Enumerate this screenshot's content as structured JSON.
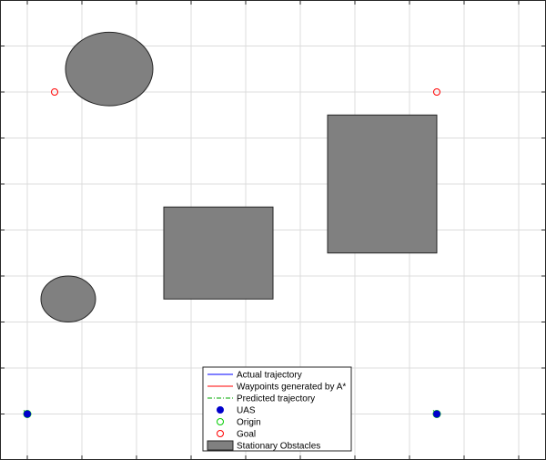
{
  "chart_data": {
    "type": "scatter",
    "title": "",
    "xlabel": "",
    "ylabel": "",
    "xlim": [
      -0.5,
      9.5
    ],
    "ylim": [
      -0.5,
      9.5
    ],
    "grid": true,
    "tick_labels_visible": false,
    "colors": {
      "grid": "#dcdcdc",
      "axes": "#262626",
      "obstacle_fill": "#808080",
      "obstacle_edge": "#262626",
      "actual": "#0000ff",
      "waypoints": "#ff0000",
      "predicted": "#00aa00",
      "uas": "#0000cc",
      "origin": "#00cc00",
      "goal": "#ff0000"
    },
    "obstacles": [
      {
        "shape": "ellipse",
        "cx": 1.5,
        "cy": 7.5,
        "rx": 0.8,
        "ry": 0.8
      },
      {
        "shape": "ellipse",
        "cx": 0.75,
        "cy": 2.5,
        "rx": 0.5,
        "ry": 0.5
      },
      {
        "shape": "rect",
        "x0": 2.5,
        "y0": 2.5,
        "x1": 4.5,
        "y1": 4.5
      },
      {
        "shape": "rect",
        "x0": 5.5,
        "y0": 3.5,
        "x1": 7.5,
        "y1": 6.5
      }
    ],
    "series": [
      {
        "name": "Actual trajectory",
        "marker": "line",
        "points": []
      },
      {
        "name": "Waypoints generated by A*",
        "marker": "line",
        "points": []
      },
      {
        "name": "Predicted trajectory",
        "marker": "dashdot",
        "points": []
      },
      {
        "name": "UAS",
        "marker": "filled-circle",
        "points": [
          [
            0.0,
            0.0
          ],
          [
            7.5,
            0.0
          ]
        ]
      },
      {
        "name": "Origin",
        "marker": "circle",
        "points": [
          [
            0.0,
            0.0
          ],
          [
            7.5,
            0.0
          ]
        ]
      },
      {
        "name": "Goal",
        "marker": "circle",
        "points": [
          [
            0.5,
            7.0
          ],
          [
            7.5,
            7.0
          ]
        ]
      },
      {
        "name": "Stationary Obstacles",
        "marker": "patch",
        "points": []
      }
    ],
    "legend": {
      "position": "bottom-center",
      "entries": [
        {
          "label": "Actual trajectory",
          "kind": "line",
          "color": "#0000ff"
        },
        {
          "label": "Waypoints generated by A*",
          "kind": "line",
          "color": "#ff0000"
        },
        {
          "label": "Predicted trajectory",
          "kind": "dashdot",
          "color": "#00aa00"
        },
        {
          "label": "UAS",
          "kind": "filled-circle",
          "color": "#0000cc"
        },
        {
          "label": "Origin",
          "kind": "circle",
          "color": "#00cc00"
        },
        {
          "label": "Goal",
          "kind": "circle",
          "color": "#ff0000"
        },
        {
          "label": "Stationary Obstacles",
          "kind": "patch",
          "color": "#808080"
        }
      ]
    }
  }
}
